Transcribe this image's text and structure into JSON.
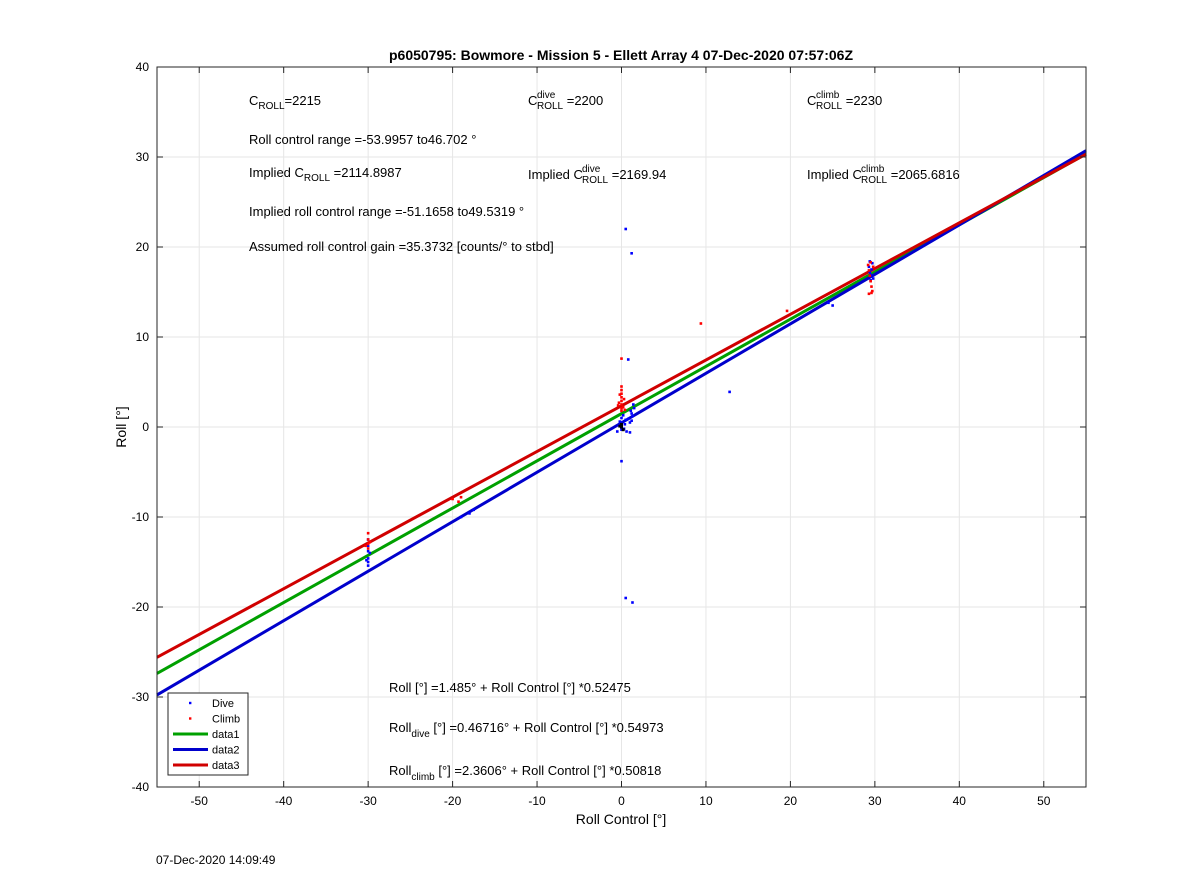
{
  "chart_data": {
    "type": "scatter",
    "title": "p6050795: Bowmore - Mission 5 - Ellett Array 4 07-Dec-2020 07:57:06Z",
    "xlabel": "Roll Control [°]",
    "ylabel": "Roll [°]",
    "xlim": [
      -55,
      55
    ],
    "ylim": [
      -40,
      40
    ],
    "xticks": [
      -50,
      -40,
      -30,
      -20,
      -10,
      0,
      10,
      20,
      30,
      40,
      50
    ],
    "yticks": [
      -40,
      -30,
      -20,
      -10,
      0,
      10,
      20,
      30,
      40
    ],
    "grid": true,
    "legend_placement": "bottom-left",
    "colors": {
      "dive": "#0000ff",
      "climb": "#ff0000",
      "data1": "#00a000",
      "data2": "#0000cc",
      "data3": "#d00000",
      "cluster": "#000000"
    },
    "series": [
      {
        "name": "Dive",
        "kind": "points",
        "color": "#0000ff",
        "points": [
          [
            -30,
            -12.5
          ],
          [
            -30,
            -13.2
          ],
          [
            -30,
            -13.8
          ],
          [
            -30,
            -14.6
          ],
          [
            -30,
            -15
          ],
          [
            -30,
            -15.4
          ],
          [
            -29.8,
            -14
          ],
          [
            -30.2,
            -14.8
          ],
          [
            -19,
            -10
          ],
          [
            -18,
            -9.6
          ],
          [
            -17.5,
            -9.2
          ],
          [
            0,
            0
          ],
          [
            0,
            0.5
          ],
          [
            0,
            1
          ],
          [
            0,
            -0.3
          ],
          [
            -0.3,
            0.2
          ],
          [
            0.3,
            -0.2
          ],
          [
            0.5,
            0.8
          ],
          [
            -0.5,
            -0.5
          ],
          [
            0.2,
            1.3
          ],
          [
            0.4,
            0.3
          ],
          [
            -0.2,
            0.6
          ],
          [
            0,
            -3.8
          ],
          [
            0.6,
            -0.5
          ],
          [
            0.8,
            0.9
          ],
          [
            1,
            0.5
          ],
          [
            1.2,
            1.5
          ],
          [
            1.5,
            2.1
          ],
          [
            1.3,
            1.2
          ],
          [
            1.2,
            0.7
          ],
          [
            1,
            -0.6
          ],
          [
            1.4,
            2.5
          ],
          [
            1.1,
            1.8
          ],
          [
            0.5,
            22
          ],
          [
            1.2,
            19.3
          ],
          [
            0.8,
            7.5
          ],
          [
            12.8,
            3.9
          ],
          [
            0.5,
            -19
          ],
          [
            1.3,
            -19.5
          ],
          [
            24.5,
            13.8
          ],
          [
            25,
            13.5
          ],
          [
            29.3,
            17.8
          ],
          [
            29.4,
            17.2
          ],
          [
            29.5,
            16.9
          ],
          [
            29.6,
            17.5
          ],
          [
            29.7,
            18.2
          ],
          [
            29.8,
            16.5
          ],
          [
            29.5,
            16.3
          ],
          [
            29.4,
            18.4
          ]
        ]
      },
      {
        "name": "Climb",
        "kind": "points",
        "color": "#ff0000",
        "points": [
          [
            -30,
            -11.8
          ],
          [
            -30,
            -12.5
          ],
          [
            -30,
            -13
          ],
          [
            -30,
            -13.5
          ],
          [
            -30.3,
            -13.2
          ],
          [
            -29.8,
            -12.8
          ],
          [
            -19,
            -7.8
          ],
          [
            -19.3,
            -8.3
          ],
          [
            -20,
            -8
          ],
          [
            0,
            7.6
          ],
          [
            0,
            4.5
          ],
          [
            0,
            4.1
          ],
          [
            0,
            3.7
          ],
          [
            0,
            3.3
          ],
          [
            0,
            2.9
          ],
          [
            0,
            2.5
          ],
          [
            0,
            2.1
          ],
          [
            0,
            1.8
          ],
          [
            -0.3,
            2.7
          ],
          [
            0.3,
            3.1
          ],
          [
            -0.2,
            3.6
          ],
          [
            0.2,
            2.2
          ],
          [
            -0.4,
            2.4
          ],
          [
            0.4,
            1.9
          ],
          [
            9.4,
            11.5
          ],
          [
            19.6,
            12.9
          ],
          [
            29.2,
            18
          ],
          [
            29.3,
            17.4
          ],
          [
            29.4,
            16.8
          ],
          [
            29.5,
            16.2
          ],
          [
            29.6,
            15.6
          ],
          [
            29.7,
            15.1
          ],
          [
            29.3,
            14.8
          ],
          [
            29.6,
            14.9
          ],
          [
            29.8,
            17.8
          ],
          [
            29.5,
            18.3
          ]
        ]
      },
      {
        "name": "data1",
        "kind": "line",
        "color": "#00a000",
        "intercept": 1.485,
        "slope": 0.52475
      },
      {
        "name": "data2",
        "kind": "line",
        "color": "#0000cc",
        "intercept": 0.46716,
        "slope": 0.54973
      },
      {
        "name": "data3",
        "kind": "line",
        "color": "#d00000",
        "intercept": 2.3606,
        "slope": 0.50818
      }
    ],
    "annotations": {
      "c_roll": {
        "base": "C",
        "sub": "ROLL",
        "value": "=2215"
      },
      "c_roll_dive": {
        "base": "C",
        "sup": "dive",
        "sub": "ROLL",
        "value": " =2200"
      },
      "c_roll_climb": {
        "base": "C",
        "sup": "climb",
        "sub": "ROLL",
        "value": " =2230"
      },
      "roll_control_range": "Roll control range =-53.9957 to46.702 °",
      "implied_c_roll": {
        "prefix": "Implied C",
        "sub": "ROLL",
        "value": " =2114.8987"
      },
      "implied_c_roll_dive": {
        "prefix": "Implied C",
        "sup": "dive",
        "sub": "ROLL",
        "value": " =2169.94"
      },
      "implied_c_roll_climb": {
        "prefix": "Implied C",
        "sup": "climb",
        "sub": "ROLL",
        "value": " =2065.6816"
      },
      "implied_roll_control_range": "Implied roll control range =-51.1658 to49.5319 °",
      "assumed_gain": "Assumed roll control gain =35.3732 [counts/° to stbd]",
      "fit_all": {
        "prefix": "Roll",
        "sub": "",
        "rest": " [°] =1.485° + Roll Control [°] *0.52475"
      },
      "fit_dive": {
        "prefix": "Roll",
        "sub": "dive",
        "rest": " [°] =0.46716° + Roll Control [°] *0.54973"
      },
      "fit_climb": {
        "prefix": "Roll",
        "sub": "climb",
        "rest": " [°] =2.3606° + Roll Control [°] *0.50818"
      }
    }
  },
  "footer_timestamp": "07-Dec-2020 14:09:49"
}
